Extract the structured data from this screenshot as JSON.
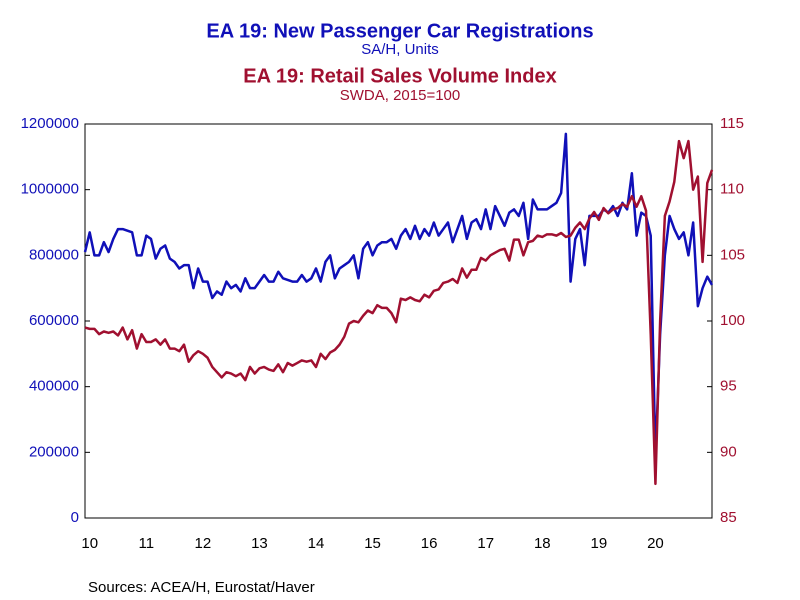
{
  "chart_data": {
    "type": "line",
    "source": "Sources:  ACEA/H, Eurostat/Haver",
    "categories": [
      null,
      "10",
      null,
      null,
      null,
      null,
      null,
      null,
      null,
      null,
      null,
      null,
      null,
      "11",
      null,
      null,
      null,
      null,
      null,
      null,
      null,
      null,
      null,
      null,
      null,
      "12",
      null,
      null,
      null,
      null,
      null,
      null,
      null,
      null,
      null,
      null,
      null,
      "13",
      null,
      null,
      null,
      null,
      null,
      null,
      null,
      null,
      null,
      null,
      null,
      "14",
      null,
      null,
      null,
      null,
      null,
      null,
      null,
      null,
      null,
      null,
      null,
      "15",
      null,
      null,
      null,
      null,
      null,
      null,
      null,
      null,
      null,
      null,
      null,
      "16",
      null,
      null,
      null,
      null,
      null,
      null,
      null,
      null,
      null,
      null,
      null,
      "17",
      null,
      null,
      null,
      null,
      null,
      null,
      null,
      null,
      null,
      null,
      null,
      "18",
      null,
      null,
      null,
      null,
      null,
      null,
      null,
      null,
      null,
      null,
      null,
      "19",
      null,
      null,
      null,
      null,
      null,
      null,
      null,
      null,
      null,
      null,
      null,
      "20",
      null,
      null,
      null,
      null,
      null,
      null,
      null,
      null,
      null,
      null,
      null,
      null
    ],
    "ylim": [
      0,
      1200000
    ],
    "yticks": [
      0,
      200000,
      400000,
      600000,
      800000,
      1000000,
      1200000
    ],
    "y2lim": [
      85,
      115
    ],
    "y2ticks": [
      85,
      90,
      95,
      100,
      105,
      110,
      115
    ],
    "series": [
      {
        "name": "EA 19: New Passenger Car Registrations",
        "subtitle": "SA/H, Units",
        "color": "#1010b8",
        "axis": "y",
        "values": [
          810000,
          870000,
          800000,
          800000,
          840000,
          810000,
          850000,
          880000,
          880000,
          875000,
          870000,
          800000,
          800000,
          860000,
          850000,
          790000,
          820000,
          830000,
          790000,
          780000,
          760000,
          770000,
          770000,
          700000,
          760000,
          720000,
          720000,
          670000,
          690000,
          680000,
          720000,
          700000,
          710000,
          690000,
          730000,
          700000,
          700000,
          720000,
          740000,
          720000,
          720000,
          750000,
          730000,
          725000,
          720000,
          720000,
          740000,
          720000,
          730000,
          760000,
          720000,
          780000,
          800000,
          730000,
          760000,
          770000,
          780000,
          800000,
          730000,
          820000,
          840000,
          800000,
          830000,
          840000,
          840000,
          850000,
          820000,
          860000,
          880000,
          850000,
          890000,
          850000,
          880000,
          860000,
          900000,
          860000,
          880000,
          900000,
          840000,
          880000,
          920000,
          850000,
          900000,
          910000,
          880000,
          940000,
          880000,
          950000,
          920000,
          890000,
          930000,
          940000,
          920000,
          960000,
          850000,
          970000,
          940000,
          940000,
          940000,
          950000,
          960000,
          990000,
          1170000,
          720000,
          850000,
          880000,
          770000,
          920000,
          920000,
          920000,
          940000,
          930000,
          950000,
          920000,
          960000,
          940000,
          1050000,
          860000,
          930000,
          920000,
          860000,
          180000,
          560000,
          800000,
          920000,
          880000,
          850000,
          870000,
          800000,
          900000,
          645000,
          700000,
          735000,
          710000
        ]
      },
      {
        "name": "EA 19: Retail Sales Volume Index",
        "subtitle": "SWDA, 2015=100",
        "color": "#a01030",
        "axis": "y2",
        "values": [
          99.5,
          99.4,
          99.4,
          99.0,
          99.2,
          99.1,
          99.2,
          98.9,
          99.5,
          98.6,
          99.3,
          97.9,
          99.0,
          98.4,
          98.4,
          98.6,
          98.2,
          98.6,
          97.9,
          97.9,
          97.7,
          98.2,
          96.9,
          97.4,
          97.7,
          97.5,
          97.2,
          96.5,
          96.1,
          95.7,
          96.1,
          96.0,
          95.8,
          96.0,
          95.5,
          96.5,
          96.0,
          96.4,
          96.5,
          96.3,
          96.2,
          96.7,
          96.1,
          96.8,
          96.6,
          96.8,
          97.0,
          96.9,
          97.0,
          96.5,
          97.5,
          97.1,
          97.6,
          97.8,
          98.2,
          98.8,
          99.8,
          100.0,
          99.9,
          100.4,
          100.8,
          100.6,
          101.2,
          101.0,
          101.0,
          100.6,
          99.9,
          101.7,
          101.6,
          101.8,
          101.6,
          101.5,
          102.0,
          101.8,
          102.3,
          102.4,
          102.9,
          103.0,
          103.2,
          102.9,
          104.0,
          103.3,
          103.9,
          103.9,
          104.8,
          104.6,
          105.0,
          105.2,
          105.4,
          105.5,
          104.6,
          106.2,
          106.2,
          105.0,
          106.0,
          106.1,
          106.5,
          106.4,
          106.6,
          106.6,
          106.5,
          106.7,
          106.4,
          106.5,
          107.1,
          107.5,
          107.0,
          107.8,
          108.3,
          107.7,
          108.6,
          108.2,
          108.5,
          108.6,
          108.9,
          108.7,
          109.5,
          108.7,
          109.5,
          108.4,
          99.0,
          87.6,
          100.0,
          108.0,
          109.1,
          110.6,
          113.7,
          112.4,
          113.7,
          110.0,
          111.0,
          104.5,
          110.5,
          111.5
        ]
      }
    ]
  }
}
